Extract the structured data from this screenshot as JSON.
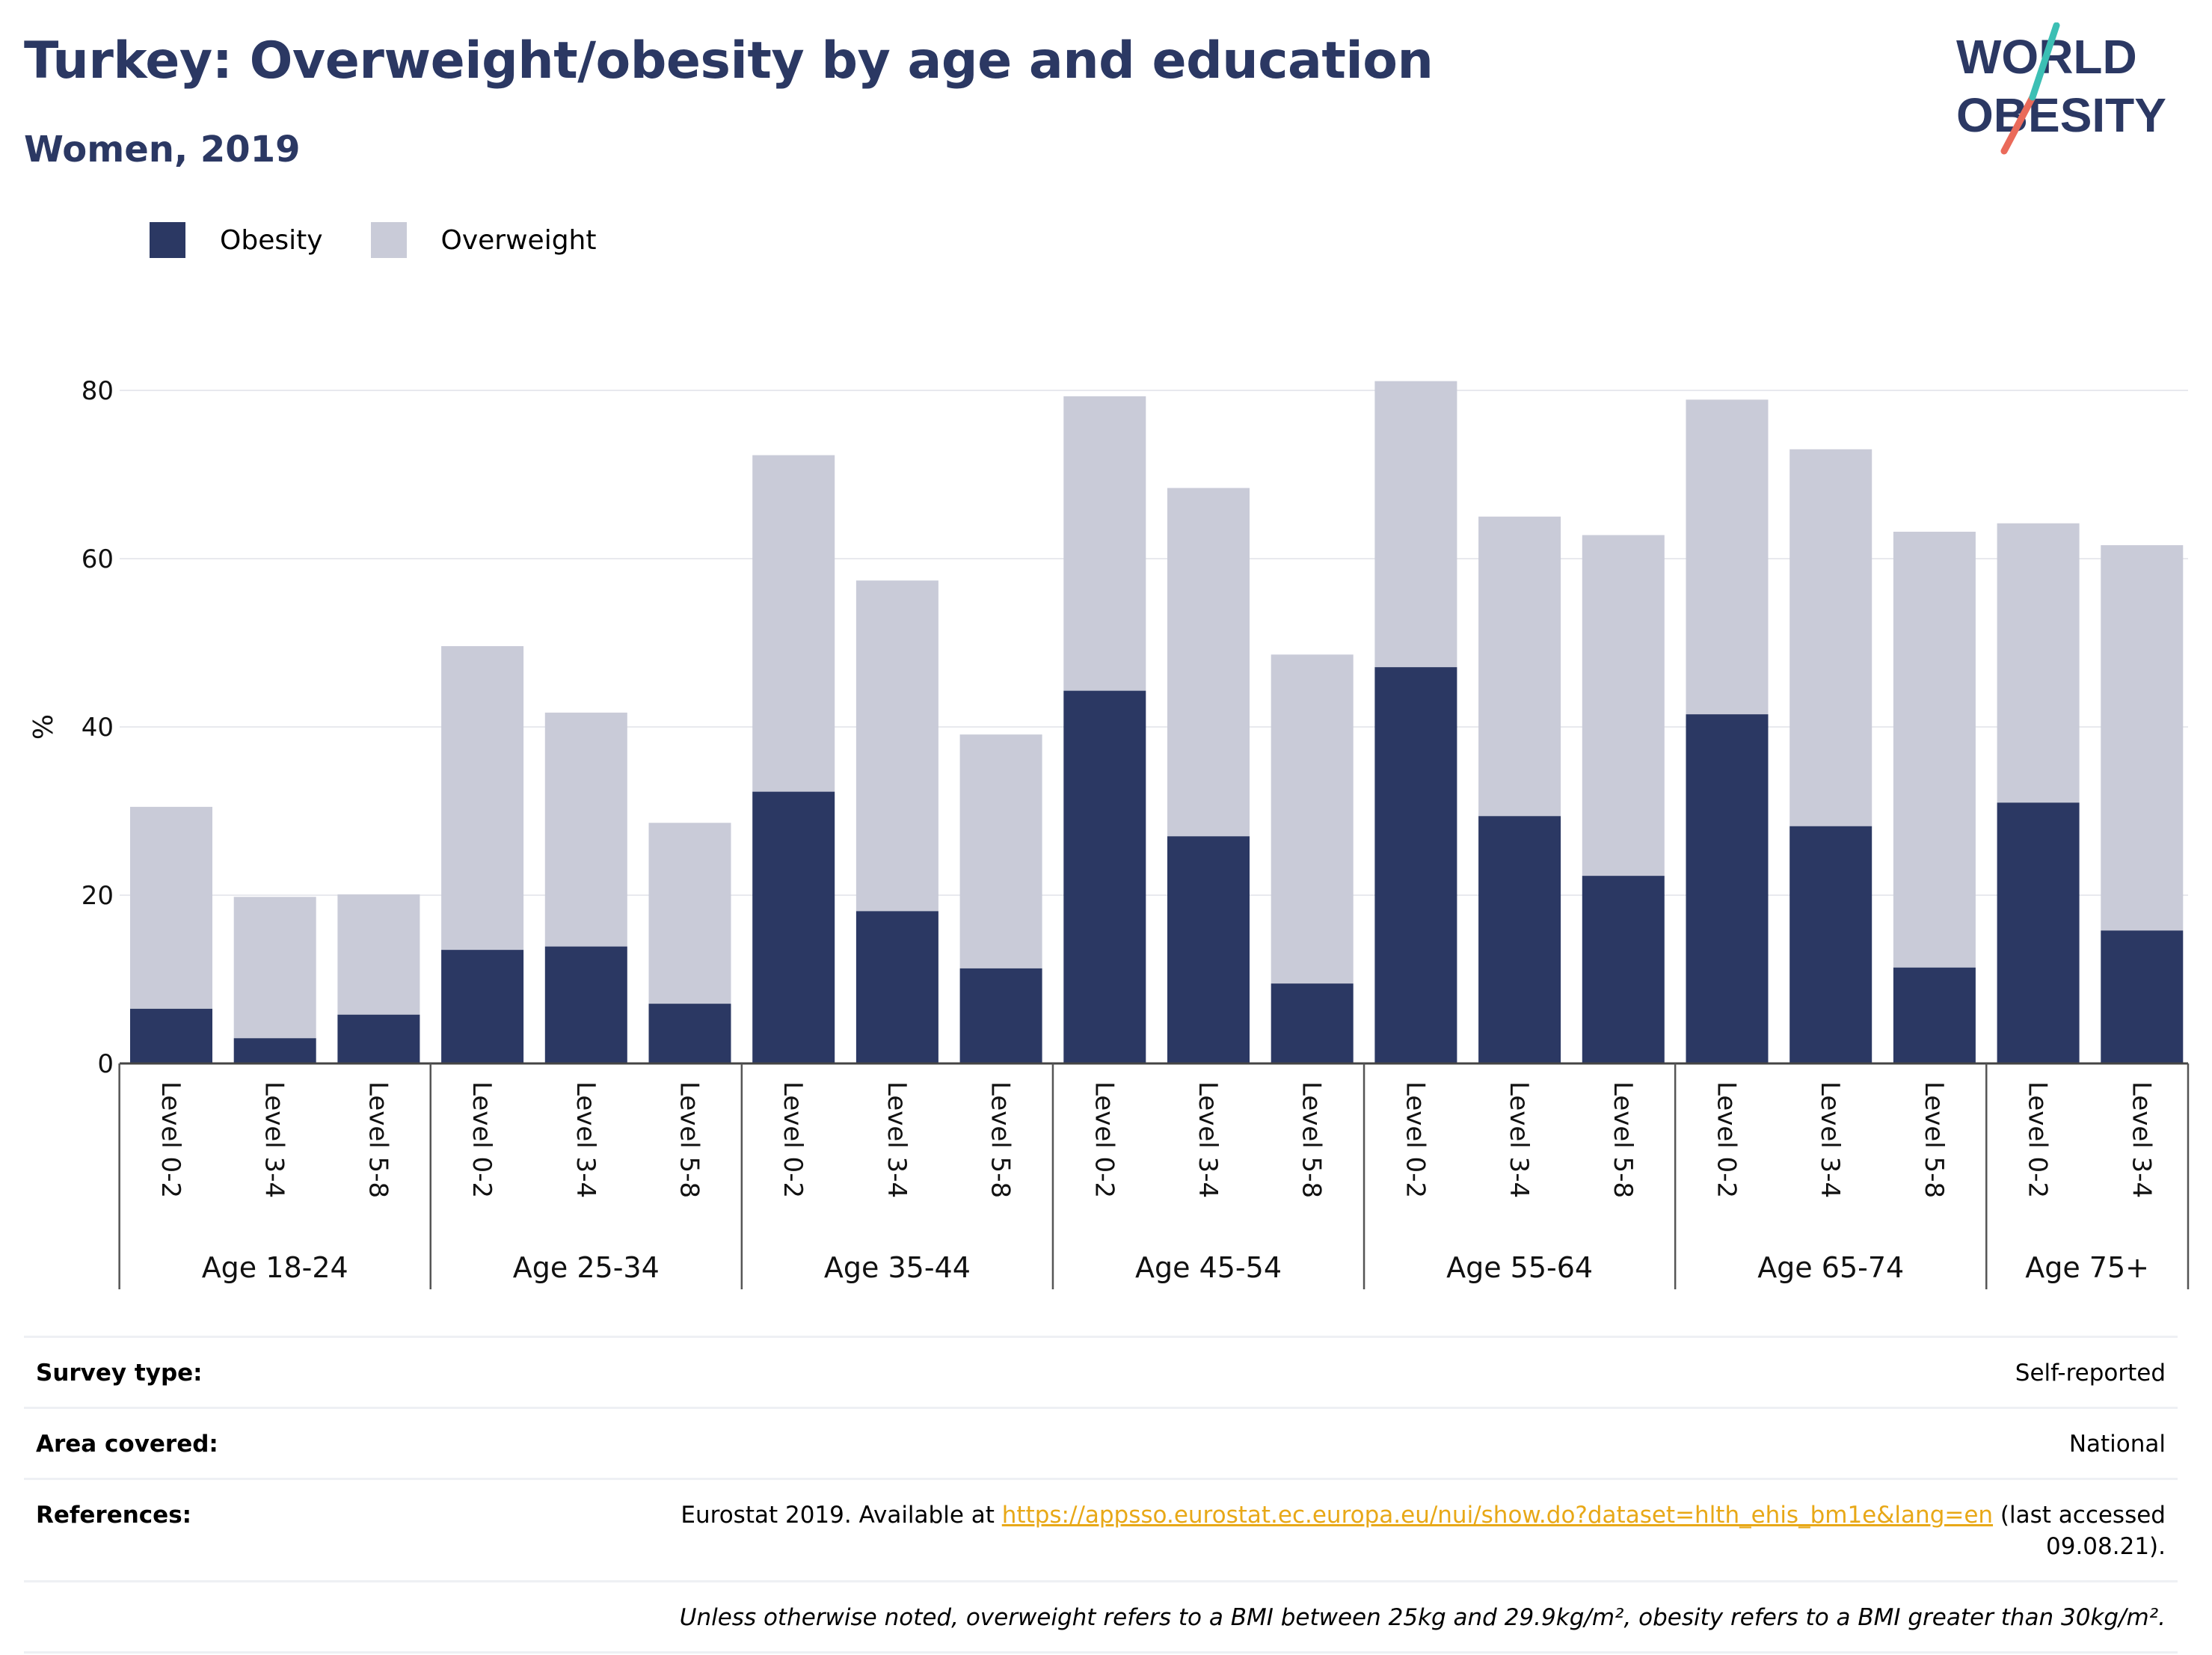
{
  "header": {
    "title": "Turkey: Overweight/obesity by age and education",
    "subtitle": "Women, 2019",
    "logo_text_top": "WORLD",
    "logo_text_bottom": "OBESITY"
  },
  "colors": {
    "obesity": "#2b3863",
    "overweight": "#c9cbd8",
    "title": "#2b3863",
    "link": "#e8a817",
    "logo_teal": "#3cbfb4",
    "logo_coral": "#ea6a5a"
  },
  "chart_data": {
    "type": "bar",
    "stacked": true,
    "ylabel": "%",
    "xlabel": "",
    "ylim": [
      0,
      88
    ],
    "yticks": [
      0,
      20,
      40,
      60,
      80
    ],
    "grid": true,
    "legend_position": "top-left",
    "categories": [
      "Level 0-2",
      "Level 3-4",
      "Level 5-8",
      "Level 0-2",
      "Level 3-4",
      "Level 5-8",
      "Level 0-2",
      "Level 3-4",
      "Level 5-8",
      "Level 0-2",
      "Level 3-4",
      "Level 5-8",
      "Level 0-2",
      "Level 3-4",
      "Level 5-8",
      "Level 0-2",
      "Level 3-4",
      "Level 5-8",
      "Level 0-2",
      "Level 3-4"
    ],
    "groups": [
      {
        "label": "Age 18-24",
        "count": 3
      },
      {
        "label": "Age 25-34",
        "count": 3
      },
      {
        "label": "Age 35-44",
        "count": 3
      },
      {
        "label": "Age 45-54",
        "count": 3
      },
      {
        "label": "Age 55-64",
        "count": 3
      },
      {
        "label": "Age 65-74",
        "count": 3
      },
      {
        "label": "Age 75+",
        "count": 2
      }
    ],
    "series": [
      {
        "name": "Obesity",
        "color": "#2b3863",
        "values": [
          6.5,
          3.0,
          5.8,
          13.5,
          13.9,
          7.1,
          32.3,
          18.1,
          11.3,
          44.3,
          27.0,
          9.5,
          47.1,
          29.4,
          22.3,
          41.5,
          28.2,
          11.4,
          31.0,
          15.8
        ]
      },
      {
        "name": "Overweight",
        "color": "#c9cbd8",
        "values": [
          24.0,
          16.8,
          14.3,
          36.1,
          27.8,
          21.5,
          40.0,
          39.3,
          27.8,
          35.0,
          41.4,
          39.1,
          34.0,
          35.6,
          40.5,
          37.4,
          44.8,
          51.8,
          33.2,
          45.8
        ]
      }
    ]
  },
  "info": [
    {
      "key": "Survey type:",
      "value": "Self-reported"
    },
    {
      "key": "Area covered:",
      "value": "National"
    },
    {
      "key": "References:",
      "value_prefix": "Eurostat 2019. Available at ",
      "link": "https://appsso.eurostat.ec.europa.eu/nui/show.do?dataset=hlth_ehis_bm1e&lang=en",
      "value_suffix": " (last accessed",
      "value_line2": "09.08.21)."
    }
  ],
  "note": "Unless otherwise noted, overweight refers to a BMI between 25kg and 29.9kg/m², obesity refers to a BMI greater than 30kg/m²."
}
